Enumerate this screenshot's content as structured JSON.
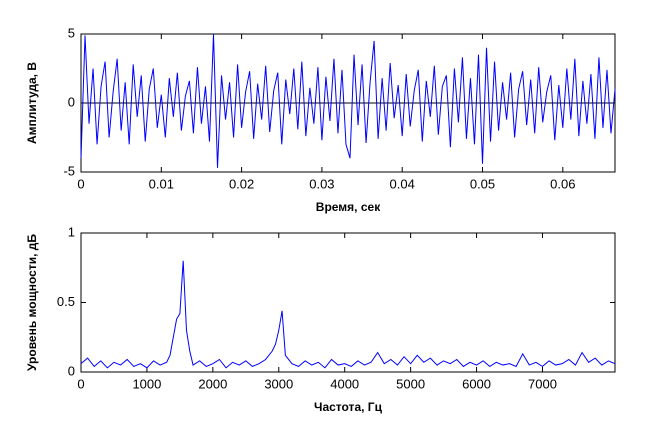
{
  "chart_data": [
    {
      "type": "line",
      "x_label": "Время, сек",
      "y_label": "Амплитуда, В",
      "xlim": [
        0,
        0.0665
      ],
      "ylim": [
        -5,
        5
      ],
      "xticks": [
        0,
        0.01,
        0.02,
        0.03,
        0.04,
        0.05,
        0.06
      ],
      "yticks": [
        -5,
        0,
        5
      ],
      "x": [
        0,
        0.0005,
        0.001,
        0.0015,
        0.002,
        0.0025,
        0.003,
        0.0035,
        0.004,
        0.0045,
        0.005,
        0.0055,
        0.006,
        0.0065,
        0.007,
        0.0075,
        0.008,
        0.0085,
        0.009,
        0.0095,
        0.01,
        0.0105,
        0.011,
        0.0115,
        0.012,
        0.0125,
        0.013,
        0.0135,
        0.014,
        0.0145,
        0.015,
        0.0155,
        0.016,
        0.0165,
        0.017,
        0.0175,
        0.018,
        0.0185,
        0.019,
        0.0195,
        0.02,
        0.0205,
        0.021,
        0.0215,
        0.022,
        0.0225,
        0.023,
        0.0235,
        0.024,
        0.0245,
        0.025,
        0.0255,
        0.026,
        0.0265,
        0.027,
        0.0275,
        0.028,
        0.0285,
        0.029,
        0.0295,
        0.03,
        0.0305,
        0.031,
        0.0315,
        0.032,
        0.0325,
        0.033,
        0.0335,
        0.034,
        0.0345,
        0.035,
        0.0355,
        0.036,
        0.0365,
        0.037,
        0.0375,
        0.038,
        0.0385,
        0.039,
        0.0395,
        0.04,
        0.0405,
        0.041,
        0.0415,
        0.042,
        0.0425,
        0.043,
        0.0435,
        0.044,
        0.0445,
        0.045,
        0.0455,
        0.046,
        0.0465,
        0.047,
        0.0475,
        0.048,
        0.0485,
        0.049,
        0.0495,
        0.05,
        0.0505,
        0.051,
        0.0515,
        0.052,
        0.0525,
        0.053,
        0.0535,
        0.054,
        0.0545,
        0.055,
        0.0555,
        0.056,
        0.0565,
        0.057,
        0.0575,
        0.058,
        0.0585,
        0.059,
        0.0595,
        0.06,
        0.0605,
        0.061,
        0.0615,
        0.062,
        0.0625,
        0.063,
        0.0635,
        0.064,
        0.0645,
        0.065,
        0.0655,
        0.066,
        0.0665
      ],
      "series": [
        {
          "color": "#0000ff",
          "values": [
            -4,
            4.9,
            -1.5,
            2.5,
            -3,
            1.2,
            3,
            -2.5,
            0.8,
            3.2,
            -2,
            1.5,
            -3,
            2.8,
            -1,
            2,
            -2.8,
            1,
            2.5,
            -1.8,
            0.6,
            -2.5,
            1.8,
            -1,
            2.2,
            -2,
            0.5,
            1.6,
            -2.2,
            2.6,
            -1.5,
            1.2,
            -2.8,
            5,
            -4.7,
            2,
            -1.2,
            1.5,
            -2.5,
            2.8,
            -1.8,
            0.8,
            2.3,
            -2.6,
            1.4,
            -1.2,
            2.7,
            -2.1,
            0.9,
            2.2,
            -3,
            1.7,
            -0.8,
            2.5,
            -1.9,
            3,
            -2.4,
            1.1,
            -1.5,
            2.6,
            -2.7,
            1.9,
            -1.3,
            3.2,
            -2.2,
            2.4,
            -3,
            -4,
            3.5,
            -1.6,
            2.8,
            -2.9,
            1.5,
            4.5,
            -2.6,
            1.8,
            -2,
            2.9,
            -1.1,
            1.3,
            -2.4,
            2.1,
            -1.7,
            0.9,
            2.4,
            -2.8,
            1.6,
            -1,
            2.7,
            -2.3,
            1.2,
            2,
            -3.2,
            2.5,
            -1.4,
            3.3,
            -2.6,
            1.8,
            -3,
            3.5,
            -4.4,
            4,
            -2.8,
            3,
            -2,
            1.5,
            -1.2,
            2.2,
            -2.5,
            1,
            2.3,
            -1.6,
            1.7,
            -2.2,
            2.6,
            -1.4,
            0.8,
            2,
            -2.7,
            1.3,
            -1.8,
            2.5,
            -1.2,
            3.2,
            -2.4,
            1.6,
            -1.5,
            2.1,
            -2.6,
            3.3,
            -1.8,
            2.4,
            -2.2,
            1
          ]
        }
      ]
    },
    {
      "type": "line",
      "x_label": "Частота, Гц",
      "y_label": "Уровень мощности, дБ",
      "xlim": [
        0,
        8100
      ],
      "ylim": [
        0,
        1
      ],
      "xticks": [
        0,
        1000,
        2000,
        3000,
        4000,
        5000,
        6000,
        7000
      ],
      "yticks": [
        0,
        0.5,
        1
      ],
      "x": [
        0,
        100,
        200,
        300,
        400,
        500,
        600,
        700,
        800,
        900,
        1000,
        1100,
        1200,
        1300,
        1350,
        1400,
        1450,
        1500,
        1550,
        1600,
        1650,
        1700,
        1800,
        1900,
        2000,
        2100,
        2200,
        2300,
        2400,
        2500,
        2600,
        2700,
        2800,
        2900,
        2950,
        3000,
        3050,
        3100,
        3200,
        3300,
        3400,
        3500,
        3600,
        3700,
        3800,
        3900,
        4000,
        4100,
        4200,
        4300,
        4400,
        4500,
        4600,
        4700,
        4800,
        4900,
        5000,
        5100,
        5200,
        5300,
        5400,
        5500,
        5600,
        5700,
        5800,
        5900,
        6000,
        6100,
        6200,
        6300,
        6400,
        6500,
        6600,
        6700,
        6800,
        6900,
        7000,
        7100,
        7200,
        7300,
        7400,
        7500,
        7600,
        7700,
        7800,
        7900,
        8000,
        8100
      ],
      "series": [
        {
          "color": "#0000ff",
          "values": [
            0.06,
            0.1,
            0.04,
            0.08,
            0.03,
            0.07,
            0.05,
            0.09,
            0.04,
            0.06,
            0.03,
            0.08,
            0.05,
            0.07,
            0.12,
            0.25,
            0.38,
            0.42,
            0.8,
            0.3,
            0.15,
            0.05,
            0.08,
            0.04,
            0.06,
            0.09,
            0.03,
            0.07,
            0.05,
            0.08,
            0.04,
            0.06,
            0.09,
            0.15,
            0.2,
            0.3,
            0.44,
            0.12,
            0.06,
            0.04,
            0.08,
            0.05,
            0.07,
            0.03,
            0.09,
            0.05,
            0.06,
            0.04,
            0.08,
            0.05,
            0.07,
            0.14,
            0.06,
            0.09,
            0.05,
            0.11,
            0.06,
            0.12,
            0.07,
            0.1,
            0.05,
            0.08,
            0.06,
            0.09,
            0.04,
            0.07,
            0.05,
            0.08,
            0.04,
            0.07,
            0.05,
            0.06,
            0.04,
            0.13,
            0.05,
            0.07,
            0.04,
            0.08,
            0.05,
            0.06,
            0.09,
            0.05,
            0.14,
            0.07,
            0.1,
            0.05,
            0.08,
            0.06
          ]
        }
      ]
    }
  ]
}
